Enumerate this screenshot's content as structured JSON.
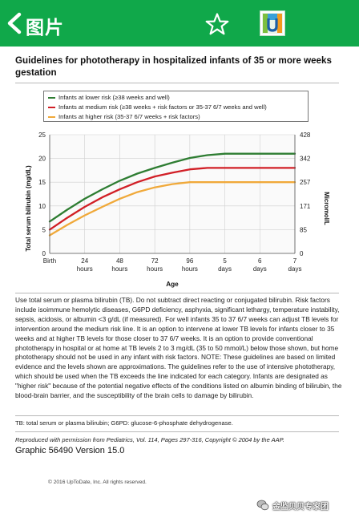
{
  "appbar": {
    "title": "图片",
    "back_icon": "chevron-left-icon",
    "favorite_icon": "star-outline-icon",
    "logo_icon": "uptodate-logo-icon"
  },
  "document": {
    "title": "Guidelines for phototherapy in hospitalized infants of 35 or more weeks gestation",
    "body": "Use total serum or plasma bilirubin (TB). Do not subtract direct reacting or conjugated bilirubin. Risk factors include isoimmune hemolytic diseases, G6PD deficiency, asphyxia, significant lethargy, temperature instability, sepsis, acidosis, or albumin <3 g/dL (if measured). For well infants 35 to 37 6/7 weeks can adjust TB levels for intervention around the medium risk line. It is an option to intervene at lower TB levels for infants closer to 35 weeks and at higher TB levels for those closer to 37 6/7 weeks. It is an option to provide conventional phototherapy in hospital or at home at TB levels 2 to 3 mg/dL (35 to 50 mmol/L) below those shown, but home phototherapy should not be used in any infant with risk factors. NOTE: These guidelines are based on limited evidence and the levels shown are approximations. The guidelines refer to the use of intensive phototherapy, which should be used when the TB exceeds the line indicated for each category. Infants are designated as \"higher risk\" because of the potential negative effects of the conditions listed on albumin binding of bilirubin, the blood-brain barrier, and the susceptibility of the brain cells to damage by bilirubin.",
    "footnote": "TB: total serum or plasma bilirubin; G6PD: glucose-6-phosphate dehydrogenase.",
    "reproduction": "Reproduced with permission from Pediatrics, Vol. 114, Pages 297-316, Copyright © 2004 by the AAP.",
    "graphic_id": "Graphic 56490 Version 15.0",
    "copyright": "© 2016 UpToDate, Inc. All rights reserved.",
    "watermark": "金监贝贝专家团"
  },
  "chart_data": {
    "type": "line",
    "x": [
      0,
      12,
      24,
      36,
      48,
      60,
      72,
      84,
      96,
      108,
      120,
      132,
      144,
      156,
      168
    ],
    "x_tick_values": [
      0,
      24,
      48,
      72,
      96,
      120,
      144,
      168
    ],
    "x_tick_labels_top": [
      "Birth",
      "24",
      "48",
      "72",
      "96",
      "5",
      "6",
      "7"
    ],
    "x_tick_labels_bottom": [
      "",
      "hours",
      "hours",
      "hours",
      "hours",
      "days",
      "days",
      "days"
    ],
    "xlabel": "Age",
    "xlim": [
      0,
      168
    ],
    "ylabel": "Total serum bilirubin (mg/dL)",
    "ylim": [
      0,
      25
    ],
    "y_ticks": [
      0,
      5,
      10,
      15,
      20,
      25
    ],
    "y2label": "Micromol/L",
    "y2_tick_values": [
      0,
      5,
      10,
      15,
      20,
      25
    ],
    "y2_tick_labels": [
      "0",
      "85",
      "171",
      "257",
      "342",
      "428"
    ],
    "grid": true,
    "legend_position": "top",
    "series": [
      {
        "name": "Infants at lower risk (≥38 weeks and well)",
        "color": "#2e7d32",
        "values": [
          6.7,
          9.2,
          11.5,
          13.5,
          15.3,
          16.8,
          18.0,
          19.1,
          20.1,
          20.7,
          21.0,
          21.0,
          21.0,
          21.0,
          21.0
        ]
      },
      {
        "name": "Infants at medium risk (≥38 weeks + risk factors or 35-37 6/7 weeks and well)",
        "color": "#d11f26",
        "values": [
          5.0,
          7.5,
          9.8,
          11.8,
          13.5,
          15.0,
          16.2,
          17.0,
          17.7,
          18.0,
          18.0,
          18.0,
          18.0,
          18.0,
          18.0
        ]
      },
      {
        "name": "Infants at higher risk (35-37 6/7 weeks + risk factors)",
        "color": "#f0a93a",
        "values": [
          3.8,
          6.0,
          8.0,
          9.8,
          11.5,
          12.9,
          13.9,
          14.6,
          15.0,
          15.0,
          15.0,
          15.0,
          15.0,
          15.0,
          15.0
        ]
      }
    ]
  }
}
